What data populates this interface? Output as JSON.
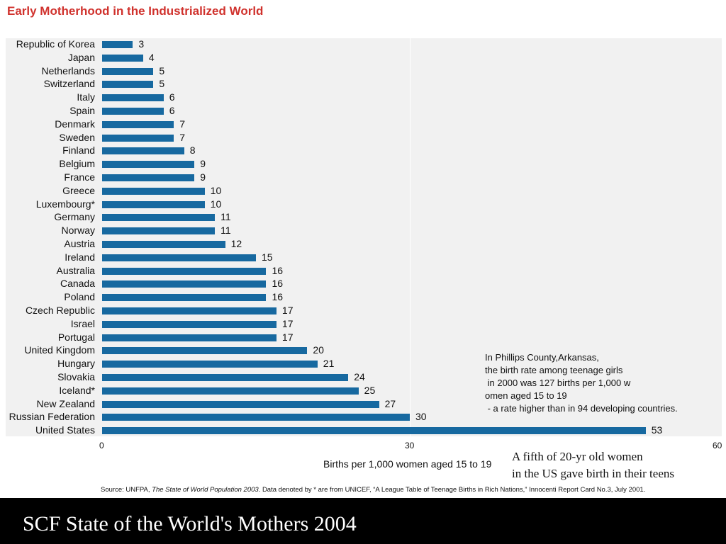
{
  "title": "Early Motherhood in the Industrialized World",
  "chart_data": {
    "type": "bar",
    "orientation": "horizontal",
    "categories": [
      "Republic of Korea",
      "Japan",
      "Netherlands",
      "Switzerland",
      "Italy",
      "Spain",
      "Denmark",
      "Sweden",
      "Finland",
      "Belgium",
      "France",
      "Greece",
      "Luxembourg*",
      "Germany",
      "Norway",
      "Austria",
      "Ireland",
      "Australia",
      "Canada",
      "Poland",
      "Czech Republic",
      "Israel",
      "Portugal",
      "United Kingdom",
      "Hungary",
      "Slovakia",
      "Iceland*",
      "New Zealand",
      "Russian Federation",
      "United States"
    ],
    "values": [
      3,
      4,
      5,
      5,
      6,
      6,
      7,
      7,
      8,
      9,
      9,
      10,
      10,
      11,
      11,
      12,
      15,
      16,
      16,
      16,
      17,
      17,
      17,
      20,
      21,
      24,
      25,
      27,
      30,
      53
    ],
    "xlabel": "Births per 1,000 women aged 15 to 19",
    "xlim": [
      0,
      60
    ],
    "xticks": [
      "0",
      "30",
      "60"
    ],
    "grid": true,
    "bar_color": "#1769a0"
  },
  "annotation_note": "In Phillips County,Arkansas,\nthe birth rate among teenage girls\n in 2000 was 127 births per 1,000 w\nomen aged 15 to 19\n - a rate higher than in 94 developing countries.",
  "annotation_fifth": "A fifth of 20-yr old women\nin the US gave birth in their teens",
  "source_prefix": "Source: UNFPA, ",
  "source_italic": "The State of World Population 2003",
  "source_suffix": ". Data denoted by * are from UNICEF, “A League Table of Teenage Births in Rich Nations,” Innocenti Report Card No.3, July 2001.",
  "footer": "SCF State of the World's Mothers 2004",
  "colors": {
    "title": "#d0322d",
    "bar": "#1769a0",
    "plot_bg": "#f1f1f1",
    "footer_bg": "#000000"
  }
}
